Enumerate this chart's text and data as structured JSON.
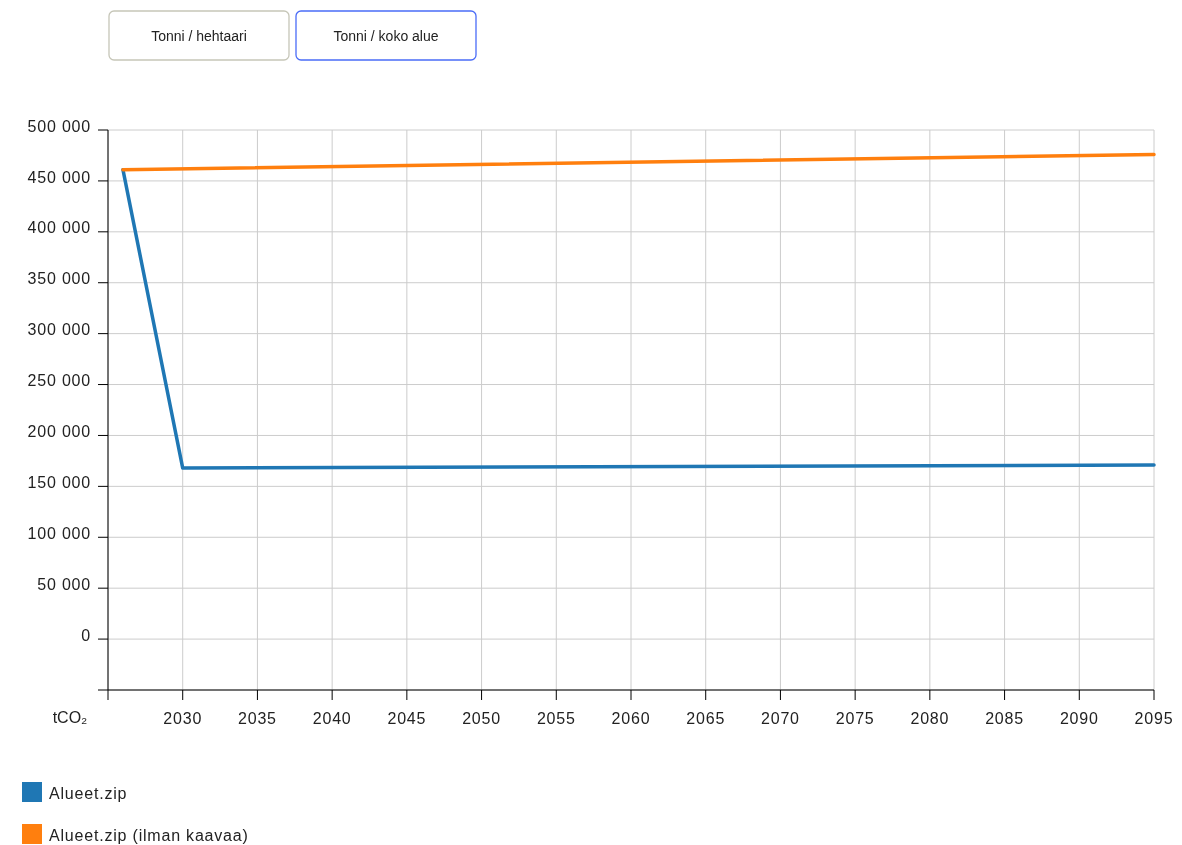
{
  "chart_data": {
    "type": "line",
    "ylabel": "tCO₂",
    "annotations": [
      "Tonni / hehtaari",
      "Tonni / koko alue"
    ],
    "xlim": [
      2025,
      2095
    ],
    "xticks": [
      {
        "value": 2025,
        "label": null
      },
      2030,
      2035,
      2040,
      2045,
      2050,
      2055,
      2060,
      2065,
      2070,
      2075,
      2080,
      2085,
      2090,
      2095
    ],
    "ylim": [
      -50000,
      500000
    ],
    "yticks": [
      {
        "value": -50000,
        "label": null
      },
      {
        "value": 0,
        "label": "0"
      },
      {
        "value": 50000,
        "label": "50 000"
      },
      {
        "value": 100000,
        "label": "100 000"
      },
      {
        "value": 150000,
        "label": "150 000"
      },
      {
        "value": 200000,
        "label": "200 000"
      },
      {
        "value": 250000,
        "label": "250 000"
      },
      {
        "value": 300000,
        "label": "300 000"
      },
      {
        "value": 350000,
        "label": "350 000"
      },
      {
        "value": 400000,
        "label": "400 000"
      },
      {
        "value": 450000,
        "label": "450 000"
      },
      {
        "value": 500000,
        "label": "500 000"
      }
    ],
    "grid": true,
    "legend": "bottom",
    "line_style": "solid",
    "marker": "none",
    "series": [
      {
        "name": "Alueet.zip",
        "color": "#1f77b4",
        "x": [
          2026,
          2030,
          2095
        ],
        "values": [
          461000,
          168000,
          171000
        ]
      },
      {
        "name": "Alueet.zip (ilman kaavaa)",
        "color": "#ff7f0e",
        "x": [
          2026,
          2095
        ],
        "values": [
          461000,
          476000
        ]
      }
    ]
  }
}
